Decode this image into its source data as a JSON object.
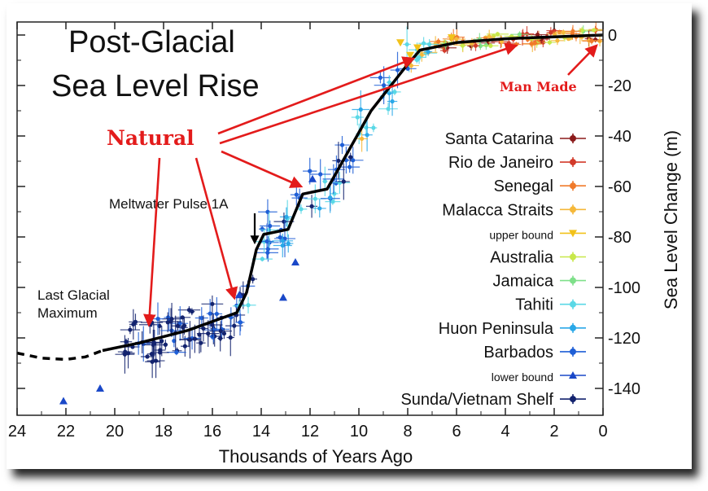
{
  "chart_data": {
    "type": "scatter",
    "title": "Post-Glacial Sea Level Rise",
    "title_line1": "Post-Glacial",
    "title_line2": "Sea Level Rise",
    "xlabel": "Thousands of Years Ago",
    "ylabel": "Sea Level Change (m)",
    "xlim": [
      24,
      0
    ],
    "ylim": [
      -150,
      5
    ],
    "x_ticks": [
      24,
      22,
      20,
      18,
      16,
      14,
      12,
      10,
      8,
      6,
      4,
      2,
      0
    ],
    "y_ticks": [
      0,
      -20,
      -40,
      -60,
      -80,
      -100,
      -120,
      -140
    ],
    "grid": false,
    "legend_position": "right",
    "legend": [
      {
        "name": "Santa Catarina",
        "color": "#8b1a1a",
        "marker": "circle",
        "small": false
      },
      {
        "name": "Rio de Janeiro",
        "color": "#d23a2a",
        "marker": "circle",
        "small": false
      },
      {
        "name": "Senegal",
        "color": "#f07a2a",
        "marker": "circle",
        "small": false
      },
      {
        "name": "Malacca Straits",
        "color": "#f5b83a",
        "marker": "circle",
        "small": false
      },
      {
        "name": "upper bound",
        "color": "#f2c21a",
        "marker": "triangle-down",
        "small": true
      },
      {
        "name": "Australia",
        "color": "#c8e84a",
        "marker": "circle",
        "small": false
      },
      {
        "name": "Jamaica",
        "color": "#7fe08a",
        "marker": "circle",
        "small": false
      },
      {
        "name": "Tahiti",
        "color": "#5ad8e6",
        "marker": "circle",
        "small": false
      },
      {
        "name": "Huon Peninsula",
        "color": "#2aa8e8",
        "marker": "circle",
        "small": false
      },
      {
        "name": "Barbados",
        "color": "#1f5fd6",
        "marker": "circle",
        "small": false
      },
      {
        "name": "lower bound",
        "color": "#1a48c8",
        "marker": "triangle-up",
        "small": true
      },
      {
        "name": "Sunda/Vietnam Shelf",
        "color": "#13236e",
        "marker": "circle",
        "small": false
      }
    ],
    "mean_curve": {
      "x": [
        20.5,
        19,
        17,
        15,
        14.6,
        14.2,
        13.9,
        12.9,
        12.3,
        11.3,
        9.5,
        8.2,
        7.5,
        6,
        4,
        2,
        0
      ],
      "y": [
        -125,
        -122,
        -117,
        -110,
        -102,
        -85,
        -79,
        -77,
        -63,
        -61,
        -30,
        -14,
        -6,
        -3,
        -1.5,
        -0.7,
        0
      ]
    },
    "extrapolated_curve": {
      "x": [
        24,
        23,
        22,
        21.2,
        20.5
      ],
      "y": [
        -126,
        -128,
        -128.5,
        -127.5,
        -125
      ]
    },
    "annotations": [
      {
        "text": "Meltwater Pulse 1A",
        "x": 14.3,
        "y": -82
      },
      {
        "text": "Last Glacial",
        "x": 24,
        "y": -102
      },
      {
        "text": "Maximum",
        "x": 24,
        "y": -110
      }
    ],
    "callouts": {
      "natural": "Natural",
      "man_made": "Man Made"
    }
  }
}
